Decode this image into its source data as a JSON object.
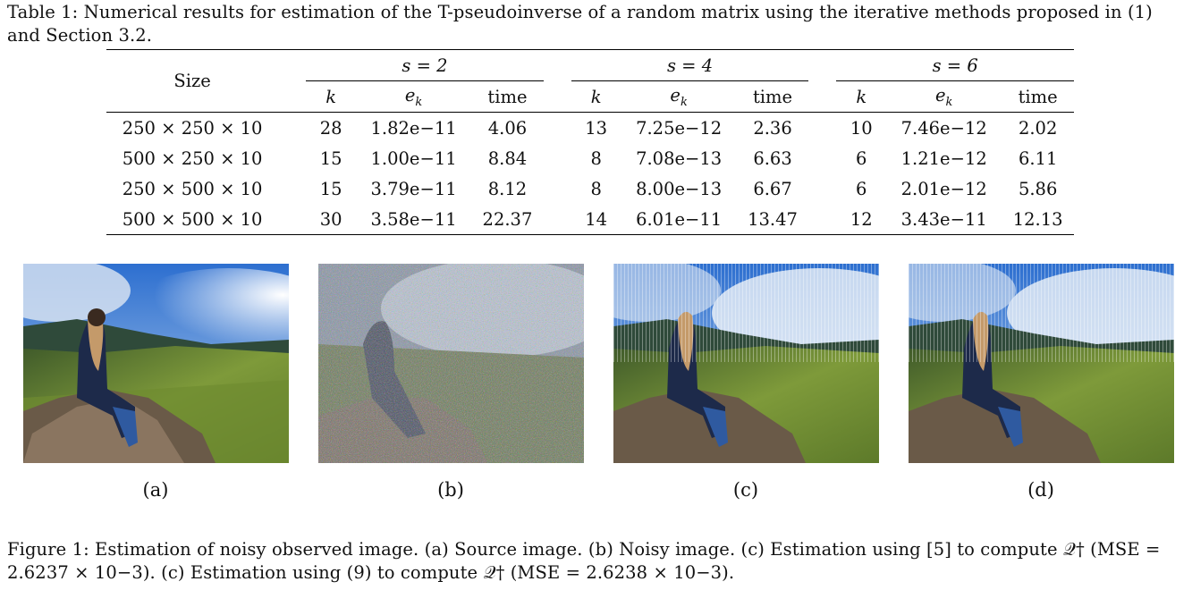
{
  "table": {
    "caption": "Table 1: Numerical results for estimation of the T-pseudoinverse of a random matrix using the iterative methods proposed in (1) and Section 3.2.",
    "size_header": "Size",
    "groups": [
      "s = 2",
      "s = 4",
      "s = 6"
    ],
    "subheaders": [
      "k",
      "e",
      "time"
    ],
    "subheader_sub": "k",
    "rows": [
      {
        "size": "250 × 250 × 10",
        "vals": [
          "28",
          "1.82e−11",
          "4.06",
          "13",
          "7.25e−12",
          "2.36",
          "10",
          "7.46e−12",
          "2.02"
        ]
      },
      {
        "size": "500 × 250 × 10",
        "vals": [
          "15",
          "1.00e−11",
          "8.84",
          "8",
          "7.08e−13",
          "6.63",
          "6",
          "1.21e−12",
          "6.11"
        ]
      },
      {
        "size": "250 × 500 × 10",
        "vals": [
          "15",
          "3.79e−11",
          "8.12",
          "8",
          "8.00e−13",
          "6.67",
          "6",
          "2.01e−12",
          "5.86"
        ]
      },
      {
        "size": "500 × 500 × 10",
        "vals": [
          "30",
          "3.58e−11",
          "22.37",
          "14",
          "6.01e−11",
          "13.47",
          "12",
          "3.43e−11",
          "12.13"
        ]
      }
    ]
  },
  "figure": {
    "labels": [
      "(a)",
      "(b)",
      "(c)",
      "(d)"
    ],
    "caption": "Figure 1: Estimation of noisy observed image. (a) Source image. (b) Noisy image. (c) Estimation using [5] to compute 𝒬† (MSE = 2.6237 × 10−3). (c) Estimation using (9) to compute 𝒬† (MSE = 2.6238 × 10−3)."
  }
}
